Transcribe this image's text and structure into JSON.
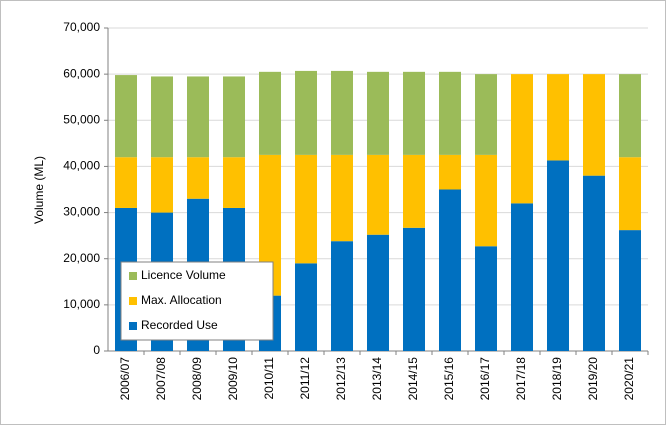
{
  "chart_data": {
    "type": "bar",
    "stacked": true,
    "y_label": "Volume (ML)",
    "categories": [
      "2006/07",
      "2007/08",
      "2008/09",
      "2009/10",
      "2010/11",
      "2011/12",
      "2012/13",
      "2013/14",
      "2014/15",
      "2015/16",
      "2016/17",
      "2017/18",
      "2018/19",
      "2019/20",
      "2020/21"
    ],
    "series": [
      {
        "name": "Recorded Use",
        "color": "#0070c0",
        "values": [
          31000,
          30000,
          33000,
          31000,
          12000,
          19000,
          23800,
          25200,
          26700,
          35000,
          22700,
          32000,
          41300,
          38000,
          26200
        ]
      },
      {
        "name": "Max. Allocation",
        "color": "#ffc000",
        "values": [
          11000,
          12000,
          9000,
          11000,
          30500,
          23500,
          18700,
          17300,
          15800,
          7500,
          19800,
          28000,
          18700,
          22000,
          15800
        ]
      },
      {
        "name": "Licence Volume",
        "color": "#9bbb59",
        "values": [
          17800,
          17500,
          17500,
          17500,
          18000,
          18200,
          18200,
          18000,
          18000,
          18000,
          17500,
          0,
          0,
          0,
          18000
        ]
      }
    ],
    "ylim": [
      0,
      70000
    ],
    "yticks": [
      0,
      {
        "value": 10000,
        "label": "10,000"
      },
      {
        "value": 20000,
        "label": "20,000"
      },
      {
        "value": 30000,
        "label": "30,000"
      },
      {
        "value": 40000,
        "label": "40,000"
      },
      {
        "value": 50000,
        "label": "50,000"
      },
      {
        "value": 60000,
        "label": "60,000"
      },
      {
        "value": 70000,
        "label": "70,000"
      }
    ],
    "grid": true,
    "legend": "lower-left"
  }
}
